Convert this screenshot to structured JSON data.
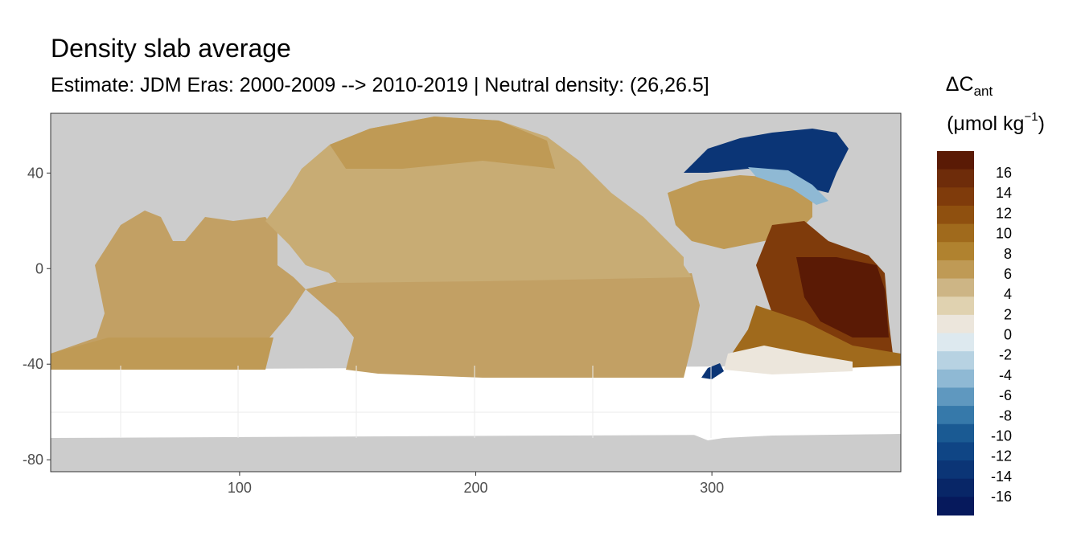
{
  "title": "Density slab average",
  "subtitle": "Estimate: JDM Eras: 2000-2009 --> 2010-2019 | Neutral density: (26,26.5]",
  "chart_data": {
    "type": "heatmap",
    "x_ticks": [
      "100",
      "200",
      "300"
    ],
    "x_tick_values": [
      100,
      200,
      300
    ],
    "y_ticks": [
      "40",
      "0",
      "-40",
      "-80"
    ],
    "y_tick_values": [
      40,
      0,
      -40,
      -80
    ],
    "xlim": [
      20,
      380
    ],
    "ylim": [
      -85,
      65
    ],
    "legend": {
      "position": "right",
      "title_line1_main": "ΔC",
      "title_line1_sub": "ant",
      "title_line2_main": "(μmol kg",
      "title_line2_sup": "−1",
      "title_line2_end": ")",
      "labels": [
        "16",
        "14",
        "12",
        "10",
        "8",
        "6",
        "4",
        "2",
        "0",
        "-2",
        "-4",
        "-6",
        "-8",
        "-10",
        "-12",
        "-14",
        "-16"
      ],
      "colors": [
        "#5a1a05",
        "#6e2c0a",
        "#7f3b0b",
        "#8f500f",
        "#a06a1c",
        "#b0822f",
        "#bf9a55",
        "#cdb585",
        "#e0d2b0",
        "#ece6dc",
        "#dde9ef",
        "#b7d2e2",
        "#8fb9d4",
        "#5f98bf",
        "#3679aa",
        "#1a5a93",
        "#0f4585",
        "#0b3576",
        "#082667",
        "#06195c"
      ]
    },
    "colors": {
      "land": "#cccccc",
      "nodata": "#ffffff",
      "grid": "#ebebeb",
      "panel_border": "#333333"
    }
  }
}
